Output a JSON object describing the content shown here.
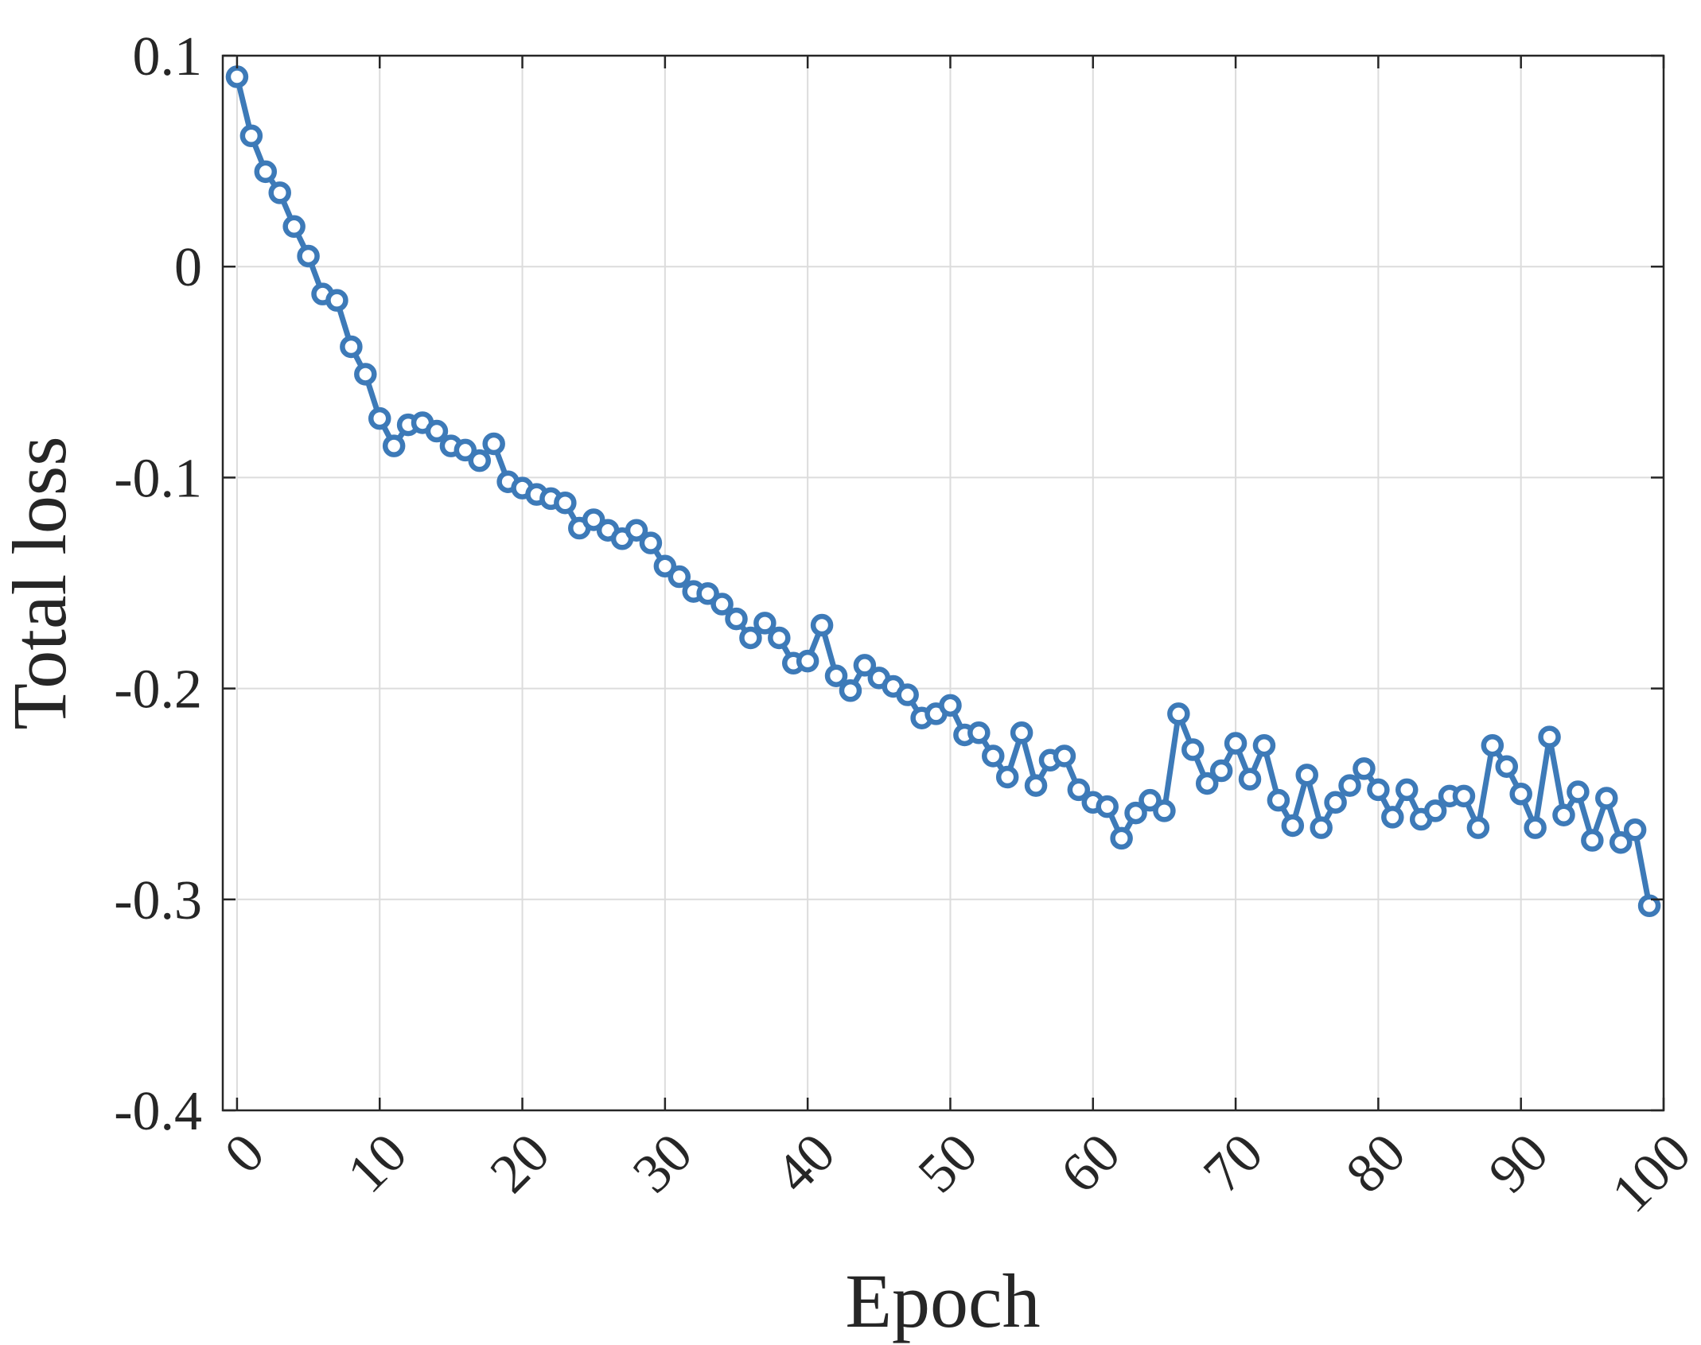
{
  "chart_data": {
    "type": "line",
    "title": "",
    "xlabel": "Epoch",
    "ylabel": "Total loss",
    "xlim": [
      -1,
      100
    ],
    "ylim": [
      -0.4,
      0.1
    ],
    "xticks": [
      0,
      10,
      20,
      30,
      40,
      50,
      60,
      70,
      80,
      90,
      100
    ],
    "xtick_labels": [
      "0",
      "10",
      "20",
      "30",
      "40",
      "50",
      "60",
      "70",
      "80",
      "90",
      "100"
    ],
    "xtick_rotation": -45,
    "yticks": [
      0.1,
      0,
      -0.1,
      -0.2,
      -0.3,
      -0.4
    ],
    "ytick_labels": [
      "0.1",
      "0",
      "-0.1",
      "-0.2",
      "-0.3",
      "-0.4"
    ],
    "grid": true,
    "legend": "none",
    "series": [
      {
        "color": "#3d7ab8",
        "marker": "circle-open",
        "x": [
          0,
          1,
          2,
          3,
          4,
          5,
          6,
          7,
          8,
          9,
          10,
          11,
          12,
          13,
          14,
          15,
          16,
          17,
          18,
          19,
          20,
          21,
          22,
          23,
          24,
          25,
          26,
          27,
          28,
          29,
          30,
          31,
          32,
          33,
          34,
          35,
          36,
          37,
          38,
          39,
          40,
          41,
          42,
          43,
          44,
          45,
          46,
          47,
          48,
          49,
          50,
          51,
          52,
          53,
          54,
          55,
          56,
          57,
          58,
          59,
          60,
          61,
          62,
          63,
          64,
          65,
          66,
          67,
          68,
          69,
          70,
          71,
          72,
          73,
          74,
          75,
          76,
          77,
          78,
          79,
          80,
          81,
          82,
          83,
          84,
          85,
          86,
          87,
          88,
          89,
          90,
          91,
          92,
          93,
          94,
          95,
          96,
          97,
          98,
          99
        ],
        "y": [
          0.09,
          0.062,
          0.045,
          0.035,
          0.019,
          0.005,
          -0.013,
          -0.016,
          -0.038,
          -0.051,
          -0.072,
          -0.085,
          -0.075,
          -0.074,
          -0.078,
          -0.085,
          -0.087,
          -0.092,
          -0.084,
          -0.102,
          -0.105,
          -0.108,
          -0.11,
          -0.112,
          -0.124,
          -0.12,
          -0.125,
          -0.129,
          -0.125,
          -0.131,
          -0.142,
          -0.147,
          -0.154,
          -0.155,
          -0.16,
          -0.167,
          -0.176,
          -0.169,
          -0.176,
          -0.188,
          -0.187,
          -0.17,
          -0.194,
          -0.201,
          -0.189,
          -0.195,
          -0.199,
          -0.203,
          -0.214,
          -0.212,
          -0.208,
          -0.222,
          -0.221,
          -0.232,
          -0.242,
          -0.221,
          -0.246,
          -0.234,
          -0.232,
          -0.248,
          -0.254,
          -0.256,
          -0.271,
          -0.259,
          -0.253,
          -0.258,
          -0.212,
          -0.229,
          -0.245,
          -0.239,
          -0.226,
          -0.243,
          -0.227,
          -0.253,
          -0.265,
          -0.241,
          -0.266,
          -0.254,
          -0.246,
          -0.238,
          -0.248,
          -0.261,
          -0.248,
          -0.262,
          -0.258,
          -0.251,
          -0.251,
          -0.266,
          -0.227,
          -0.237,
          -0.25,
          -0.266,
          -0.223,
          -0.26,
          -0.249,
          -0.272,
          -0.252,
          -0.273,
          -0.267,
          -0.303
        ]
      }
    ]
  }
}
